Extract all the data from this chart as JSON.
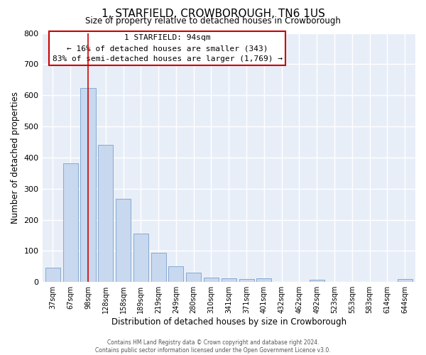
{
  "title": "1, STARFIELD, CROWBOROUGH, TN6 1US",
  "subtitle": "Size of property relative to detached houses in Crowborough",
  "xlabel": "Distribution of detached houses by size in Crowborough",
  "ylabel": "Number of detached properties",
  "bar_labels": [
    "37sqm",
    "67sqm",
    "98sqm",
    "128sqm",
    "158sqm",
    "189sqm",
    "219sqm",
    "249sqm",
    "280sqm",
    "310sqm",
    "341sqm",
    "371sqm",
    "401sqm",
    "432sqm",
    "462sqm",
    "492sqm",
    "523sqm",
    "553sqm",
    "583sqm",
    "614sqm",
    "644sqm"
  ],
  "bar_values": [
    47,
    382,
    623,
    440,
    268,
    155,
    95,
    50,
    30,
    15,
    12,
    10,
    12,
    0,
    0,
    8,
    0,
    0,
    0,
    0,
    10
  ],
  "bar_color": "#c8d8ee",
  "bar_edge_color": "#7aa0cc",
  "vline_x": 2,
  "vline_color": "#cc0000",
  "annotation_title": "1 STARFIELD: 94sqm",
  "annotation_line1": "← 16% of detached houses are smaller (343)",
  "annotation_line2": "83% of semi-detached houses are larger (1,769) →",
  "annotation_box_color": "#ffffff",
  "annotation_box_edge": "#cc0000",
  "ylim": [
    0,
    800
  ],
  "yticks": [
    0,
    100,
    200,
    300,
    400,
    500,
    600,
    700,
    800
  ],
  "footer_line1": "Contains HM Land Registry data © Crown copyright and database right 2024.",
  "footer_line2": "Contains public sector information licensed under the Open Government Licence v3.0.",
  "bg_color": "#ffffff",
  "plot_bg_color": "#e8eef8"
}
